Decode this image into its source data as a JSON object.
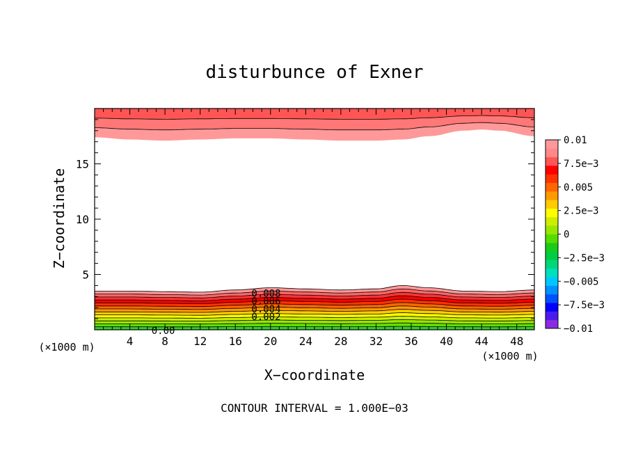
{
  "chart_data": {
    "type": "contour",
    "title": "disturbunce of Exner",
    "xlabel": "X−coordinate",
    "ylabel": "Z−coordinate",
    "x_unit_left": "(×1000 m)",
    "x_unit_right": "(×1000 m)",
    "footer": "CONTOUR INTERVAL = 1.000E−03",
    "xlim": [
      0,
      50
    ],
    "ylim": [
      0,
      20
    ],
    "x_ticks": [
      4,
      8,
      12,
      16,
      20,
      24,
      28,
      32,
      36,
      40,
      44,
      48
    ],
    "y_ticks": [
      5,
      10,
      15
    ],
    "x_tick_labels": [
      "4",
      "8",
      "12",
      "16",
      "20",
      "24",
      "28",
      "32",
      "36",
      "40",
      "44",
      "48"
    ],
    "y_tick_labels": [
      "5",
      "10",
      "15"
    ],
    "colorbar_labels": [
      "0.01",
      "7.5e−3",
      "0.005",
      "2.5e−3",
      "0",
      "−2.5e−3",
      "−0.005",
      "−7.5e−3",
      "−0.01"
    ],
    "colorbar_colors": [
      "#8a2be2",
      "#4d1aee",
      "#0000ff",
      "#0052ff",
      "#0090ff",
      "#00c8ff",
      "#00e0c0",
      "#00d878",
      "#00cc44",
      "#19cc19",
      "#55dd00",
      "#99e600",
      "#ccee00",
      "#ffff00",
      "#ffcc00",
      "#ff9900",
      "#ff6600",
      "#ff3300",
      "#ff0000",
      "#ff5555",
      "#ff8888",
      "#ff9999"
    ],
    "contour_labels": [
      {
        "text": "0.008",
        "x": 19.5,
        "z": 3.3
      },
      {
        "text": "0.006",
        "x": 19.5,
        "z": 2.6
      },
      {
        "text": "0.004",
        "x": 19.5,
        "z": 1.9
      },
      {
        "text": "0.002",
        "x": 19.5,
        "z": 1.2
      },
      {
        "text": "0.00",
        "x": 7.8,
        "z": -0.05
      }
    ],
    "lower_band": {
      "x": [
        0,
        4,
        8,
        12,
        16,
        20,
        24,
        28,
        32,
        35,
        38,
        42,
        46,
        50
      ],
      "z_top": [
        3.5,
        3.5,
        3.45,
        3.4,
        3.6,
        3.8,
        3.7,
        3.6,
        3.7,
        4.0,
        3.8,
        3.5,
        3.45,
        3.6
      ],
      "colors": [
        "#33cc33",
        "#66dd00",
        "#99e600",
        "#ccee00",
        "#ffff00",
        "#ffcc00",
        "#ff9900",
        "#ff6600",
        "#ff3300",
        "#ff0000",
        "#ff3333",
        "#ff6666",
        "#ff9999"
      ]
    },
    "upper_band": {
      "x": [
        0,
        4,
        8,
        12,
        16,
        20,
        24,
        28,
        32,
        35,
        38,
        42,
        44,
        46,
        50
      ],
      "z_bottom": [
        17.4,
        17.2,
        17.1,
        17.2,
        17.3,
        17.3,
        17.2,
        17.1,
        17.1,
        17.2,
        17.5,
        18.0,
        18.1,
        18.0,
        17.5
      ],
      "colors": [
        "#ff9999",
        "#ff7777",
        "#ff5555"
      ]
    }
  }
}
